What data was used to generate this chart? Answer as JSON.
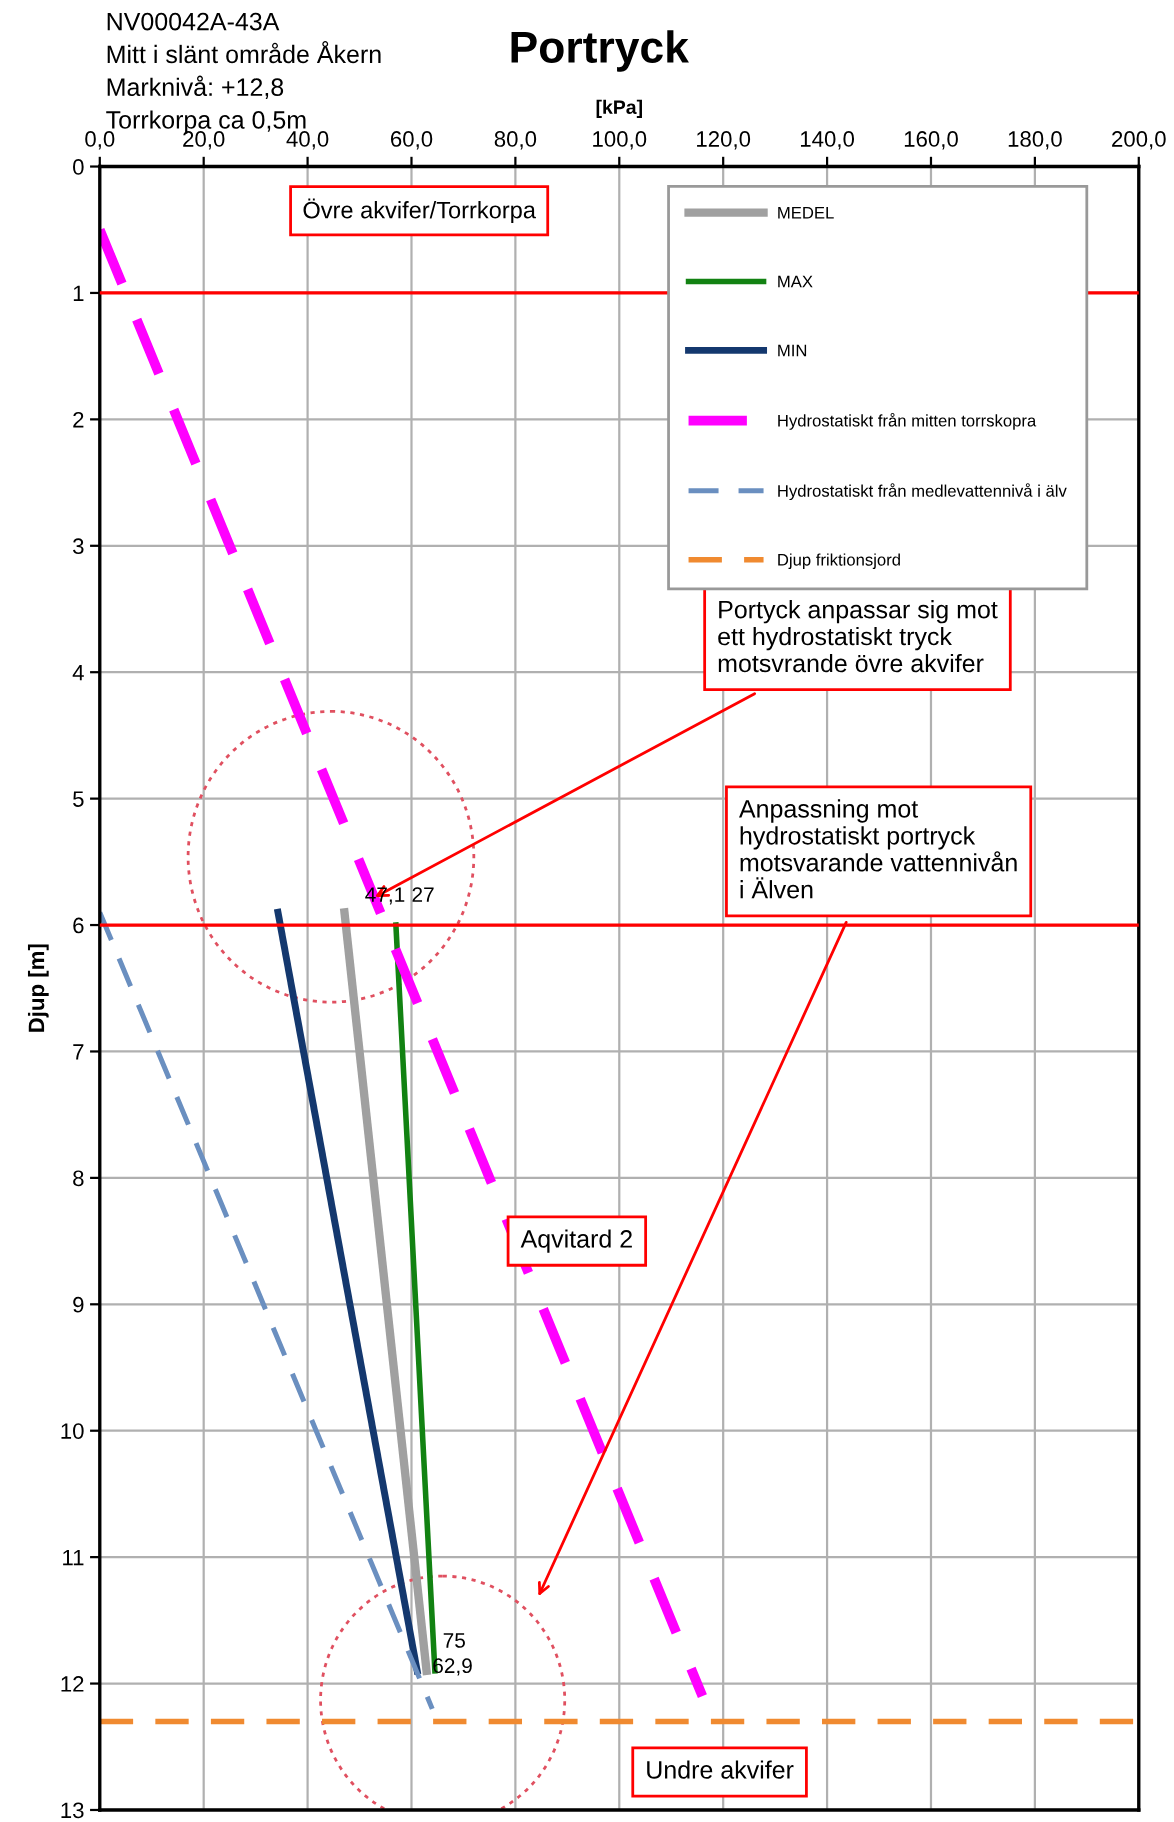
{
  "chart_data": {
    "type": "line",
    "title": "Portryck",
    "xlabel": "[kPa]",
    "ylabel": "Djup [m]",
    "xlim": [
      0,
      200
    ],
    "ylim": [
      13,
      0
    ],
    "xticks": [
      {
        "value": 0,
        "label": "0,0"
      },
      {
        "value": 20,
        "label": "20,0"
      },
      {
        "value": 40,
        "label": "40,0"
      },
      {
        "value": 60,
        "label": "60,0"
      },
      {
        "value": 80,
        "label": "80,0"
      },
      {
        "value": 100,
        "label": "100,0"
      },
      {
        "value": 120,
        "label": "120,0"
      },
      {
        "value": 140,
        "label": "140,0"
      },
      {
        "value": 160,
        "label": "160,0"
      },
      {
        "value": 180,
        "label": "180,0"
      },
      {
        "value": 200,
        "label": "200,0"
      }
    ],
    "yticks": [
      0,
      1,
      2,
      3,
      4,
      5,
      6,
      7,
      8,
      9,
      10,
      11,
      12,
      13
    ],
    "grid": true,
    "legend": "top right",
    "series": [
      {
        "name": "MEDEL",
        "color": "#a0a0a0",
        "x": [
          47.1,
          62.9
        ],
        "values": [
          5.9,
          11.9
        ],
        "line_style": "solid"
      },
      {
        "name": "MAX",
        "color": "#128212",
        "x": [
          57,
          64.5
        ],
        "values": [
          6.0,
          11.9
        ],
        "line_style": "solid"
      },
      {
        "name": "MIN",
        "color": "#14386e",
        "x": [
          34.3,
          61.1
        ],
        "values": [
          5.9,
          11.9
        ],
        "line_style": "solid"
      },
      {
        "name": "Hydrostatiskt från mitten torrskopra",
        "color": "#ff00ff",
        "x": [
          0,
          116
        ],
        "values": [
          0.5,
          12.1
        ],
        "line_style": "dashed"
      },
      {
        "name": "Hydrostatiskt från medlevattennivå i älv",
        "color": "#6a8fc0",
        "x": [
          0,
          64
        ],
        "values": [
          5.9,
          12.2
        ],
        "line_style": "dashed"
      },
      {
        "name": "Djup friktionsjord",
        "color": "#f08a30",
        "x": [
          0,
          200
        ],
        "values": [
          12.3,
          12.3
        ],
        "line_style": "dashed"
      }
    ],
    "ref_lines": [
      {
        "axis": "y",
        "value": 1,
        "color": "#ff0000"
      },
      {
        "axis": "y",
        "value": 6,
        "color": "#ff0000"
      }
    ],
    "annotations": [
      "NV00042A-43A",
      "Mitt i slänt område Åkern",
      "Marknivå: +12,8",
      "Torrkorpa ca 0,5m",
      "Övre akvifer/Torrkorpa",
      "Aqvitard 2",
      "Undre akvifer",
      {
        "text": "Portyck anpassar sig mot\nett hydrostatiskt tryck\nmotsvrande övre akvifer",
        "x": 52,
        "y": 5.8
      },
      "Anpassning mot\nhydrostatiskt portryck\nmotsvarande vattennivån\ni Älven",
      {
        "text": "47,1",
        "x": 51,
        "y": 5.85
      },
      "27",
      {
        "text": "75",
        "x": 66,
        "y": 11.75
      },
      {
        "text": "62,9",
        "x": 64,
        "y": 11.95
      }
    ]
  }
}
